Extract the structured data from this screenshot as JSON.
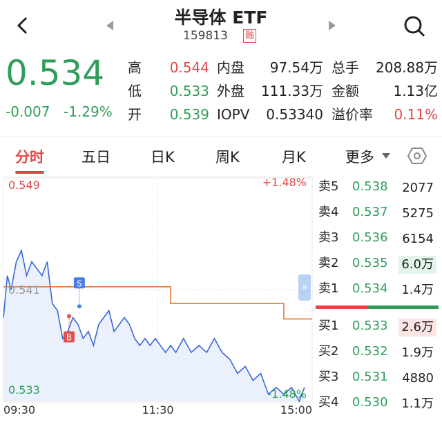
{
  "header": {
    "title": "半导体 ETF",
    "code": "159813",
    "tag": "融"
  },
  "quote": {
    "price": "0.534",
    "change": "-0.007",
    "change_pct": "-1.29%",
    "fields": [
      [
        {
          "label": "高",
          "value": "0.544"
        },
        {
          "label": "内盘",
          "value": "97.54万"
        },
        {
          "label": "总手",
          "value": "208.88万"
        }
      ],
      [
        {
          "label": "低",
          "value": "0.533"
        },
        {
          "label": "外盘",
          "value": "111.33万"
        },
        {
          "label": "金额",
          "value": "1.13亿"
        }
      ],
      [
        {
          "label": "开",
          "value": "0.539"
        },
        {
          "label": "IOPV",
          "value": "0.53340"
        },
        {
          "label": "溢价率",
          "value": "0.11%"
        }
      ]
    ]
  },
  "tabs": [
    "分时",
    "五日",
    "日K",
    "周K",
    "月K",
    "更多"
  ],
  "chart_data": {
    "type": "line",
    "xlim": [
      0,
      240
    ],
    "xticks": [
      {
        "value": 0,
        "label": "09:30"
      },
      {
        "value": 120,
        "label": "11:30"
      },
      {
        "value": 240,
        "label": "15:00"
      }
    ],
    "ylim": [
      0.533,
      0.549
    ],
    "yticks": [
      0.533,
      0.541,
      0.549
    ],
    "pct_labels": [
      "+1.48%",
      "-1.48%"
    ],
    "price": {
      "color": "#3a66d8",
      "x": [
        0,
        3,
        6,
        10,
        14,
        18,
        22,
        26,
        30,
        34,
        38,
        42,
        46,
        50,
        54,
        58,
        62,
        66,
        70,
        74,
        78,
        82,
        86,
        90,
        94,
        98,
        102,
        106,
        110,
        114,
        118,
        122,
        126,
        130,
        134,
        140,
        146,
        152,
        158,
        164,
        170,
        176,
        182,
        188,
        194,
        200,
        206,
        212,
        218,
        224,
        230,
        234
      ],
      "values": [
        0.539,
        0.542,
        0.541,
        0.543,
        0.5438,
        0.542,
        0.543,
        0.5425,
        0.542,
        0.543,
        0.54,
        0.5395,
        0.5375,
        0.538,
        0.539,
        0.5385,
        0.5375,
        0.538,
        0.537,
        0.5385,
        0.539,
        0.5395,
        0.538,
        0.5385,
        0.539,
        0.5385,
        0.5375,
        0.537,
        0.5375,
        0.537,
        0.5375,
        0.537,
        0.5365,
        0.537,
        0.5365,
        0.5375,
        0.5365,
        0.537,
        0.5365,
        0.5375,
        0.5365,
        0.536,
        0.535,
        0.5355,
        0.5345,
        0.535,
        0.5335,
        0.534,
        0.5335,
        0.534,
        0.533,
        0.534
      ]
    },
    "average": {
      "color": "#e8742c",
      "x": [
        0,
        130,
        130,
        218,
        218,
        240
      ],
      "values": [
        0.5412,
        0.5412,
        0.54,
        0.54,
        0.5389,
        0.5389
      ]
    },
    "markers": [
      {
        "label": "S",
        "x": 59,
        "value": 0.5398,
        "color": "#4a7be8"
      },
      {
        "label": "B",
        "x": 51,
        "value": 0.5391,
        "color": "#e05050"
      }
    ]
  },
  "order_book": {
    "asks": [
      {
        "label": "卖5",
        "price": "0.538",
        "volume": "2077"
      },
      {
        "label": "卖4",
        "price": "0.537",
        "volume": "5275"
      },
      {
        "label": "卖3",
        "price": "0.536",
        "volume": "6154"
      },
      {
        "label": "卖2",
        "price": "0.535",
        "volume": "6.0万"
      },
      {
        "label": "卖1",
        "price": "0.534",
        "volume": "1.4万"
      }
    ],
    "bids": [
      {
        "label": "买1",
        "price": "0.533",
        "volume": "2.6万"
      },
      {
        "label": "买2",
        "price": "0.532",
        "volume": "1.9万"
      },
      {
        "label": "买3",
        "price": "0.531",
        "volume": "4880"
      },
      {
        "label": "买4",
        "price": "0.530",
        "volume": "1.1万"
      }
    ]
  }
}
